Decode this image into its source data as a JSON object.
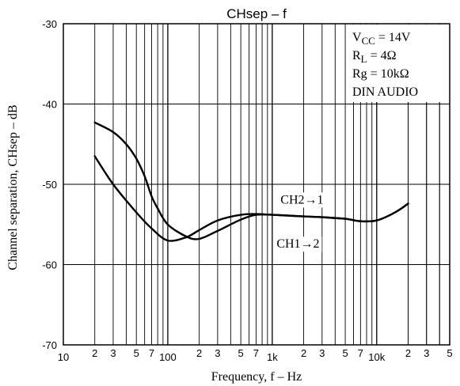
{
  "chart_data": {
    "type": "line",
    "title": "CHsep – f",
    "xlabel": "Frequency, f – Hz",
    "ylabel": "Channel separation, CHsep – dB",
    "x_scale": "log",
    "xlim": [
      10,
      50000
    ],
    "ylim": [
      -70,
      -30
    ],
    "y_ticks": [
      "-30",
      "-40",
      "-50",
      "-60",
      "-70"
    ],
    "y_tick_values": [
      -30,
      -40,
      -50,
      -60,
      -70
    ],
    "x_major_labels": [
      {
        "x": 10,
        "label": "10"
      },
      {
        "x": 100,
        "label": "100"
      },
      {
        "x": 1000,
        "label": "1k"
      },
      {
        "x": 10000,
        "label": "10k"
      }
    ],
    "x_minor_labels": [
      {
        "x": 20,
        "label": "2"
      },
      {
        "x": 30,
        "label": "3"
      },
      {
        "x": 50,
        "label": "5"
      },
      {
        "x": 70,
        "label": "7"
      },
      {
        "x": 200,
        "label": "2"
      },
      {
        "x": 300,
        "label": "3"
      },
      {
        "x": 500,
        "label": "5"
      },
      {
        "x": 700,
        "label": "7"
      },
      {
        "x": 2000,
        "label": "2"
      },
      {
        "x": 3000,
        "label": "3"
      },
      {
        "x": 5000,
        "label": "5"
      },
      {
        "x": 7000,
        "label": "7"
      },
      {
        "x": 20000,
        "label": "2"
      },
      {
        "x": 30000,
        "label": "3"
      },
      {
        "x": 50000,
        "label": "5"
      }
    ],
    "grid": true,
    "conditions": [
      {
        "main": "V",
        "sub": "CC",
        "rest": " = 14V"
      },
      {
        "main": "R",
        "sub": "L",
        "rest": " = 4Ω"
      },
      {
        "main": "Rg = 10kΩ",
        "sub": "",
        "rest": ""
      },
      {
        "main": "DIN AUDIO",
        "sub": "",
        "rest": ""
      }
    ],
    "series": [
      {
        "name": "CH2→1",
        "label_at": {
          "x": 1200,
          "y": -52.4
        },
        "x": [
          20,
          30,
          40,
          50,
          60,
          70,
          80,
          100,
          150,
          200,
          300,
          500,
          700,
          1000,
          2000,
          3000,
          5000,
          7000,
          10000,
          15000,
          20000
        ],
        "y": [
          -42.3,
          -43.5,
          -45,
          -46.8,
          -49,
          -51.5,
          -53,
          -55,
          -56.5,
          -56.8,
          -55.8,
          -54.4,
          -53.8,
          -53.8,
          -54.0,
          -54.1,
          -54.3,
          -54.6,
          -54.5,
          -53.5,
          -52.4
        ]
      },
      {
        "name": "CH1→2",
        "label_at": {
          "x": 1100,
          "y": -57.9
        },
        "x": [
          20,
          30,
          50,
          70,
          100,
          150,
          200,
          300,
          500,
          700,
          1000,
          2000,
          3000,
          5000,
          7000,
          10000,
          15000,
          20000
        ],
        "y": [
          -46.5,
          -50,
          -53.5,
          -55.5,
          -57.0,
          -56.6,
          -55.7,
          -54.5,
          -53.8,
          -53.7,
          -53.8,
          -54.0,
          -54.1,
          -54.3,
          -54.6,
          -54.5,
          -53.5,
          -52.4
        ]
      }
    ]
  }
}
